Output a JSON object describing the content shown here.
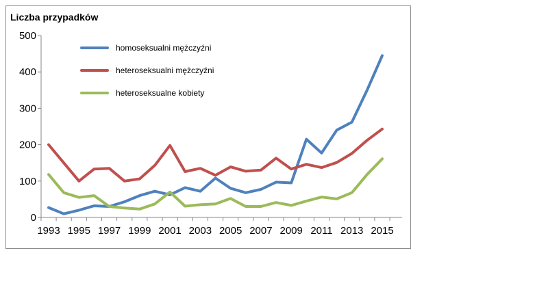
{
  "chart_data": {
    "type": "line",
    "title": "",
    "xlabel": "",
    "ylabel": "Liczba przypadków",
    "ylim": [
      0,
      500
    ],
    "yticks": [
      0,
      100,
      200,
      300,
      400,
      500
    ],
    "xlim": [
      1993,
      2015
    ],
    "xticks": [
      1993,
      1995,
      1997,
      1999,
      2001,
      2003,
      2005,
      2007,
      2009,
      2011,
      2013,
      2015
    ],
    "grid": false,
    "legend_position": "top-left",
    "x": [
      1993,
      1994,
      1995,
      1996,
      1997,
      1998,
      1999,
      2000,
      2001,
      2002,
      2003,
      2004,
      2005,
      2006,
      2007,
      2008,
      2009,
      2010,
      2011,
      2012,
      2013,
      2014,
      2015
    ],
    "series": [
      {
        "name": "homoseksualni mężczyźni",
        "color": "#4f81bd",
        "values": [
          27,
          10,
          20,
          32,
          30,
          43,
          60,
          72,
          62,
          82,
          72,
          108,
          80,
          68,
          77,
          97,
          95,
          215,
          177,
          240,
          262,
          350,
          445
        ]
      },
      {
        "name": "heteroseksualni mężczyźni",
        "color": "#c0504d",
        "values": [
          200,
          150,
          100,
          133,
          135,
          100,
          106,
          143,
          198,
          126,
          135,
          116,
          139,
          127,
          130,
          163,
          133,
          146,
          137,
          151,
          176,
          212,
          243
        ]
      },
      {
        "name": "heteroseksualne kobiety",
        "color": "#9bbb59",
        "values": [
          118,
          68,
          55,
          60,
          30,
          26,
          23,
          37,
          70,
          31,
          35,
          37,
          52,
          30,
          30,
          41,
          33,
          45,
          56,
          51,
          68,
          118,
          161
        ]
      }
    ]
  }
}
